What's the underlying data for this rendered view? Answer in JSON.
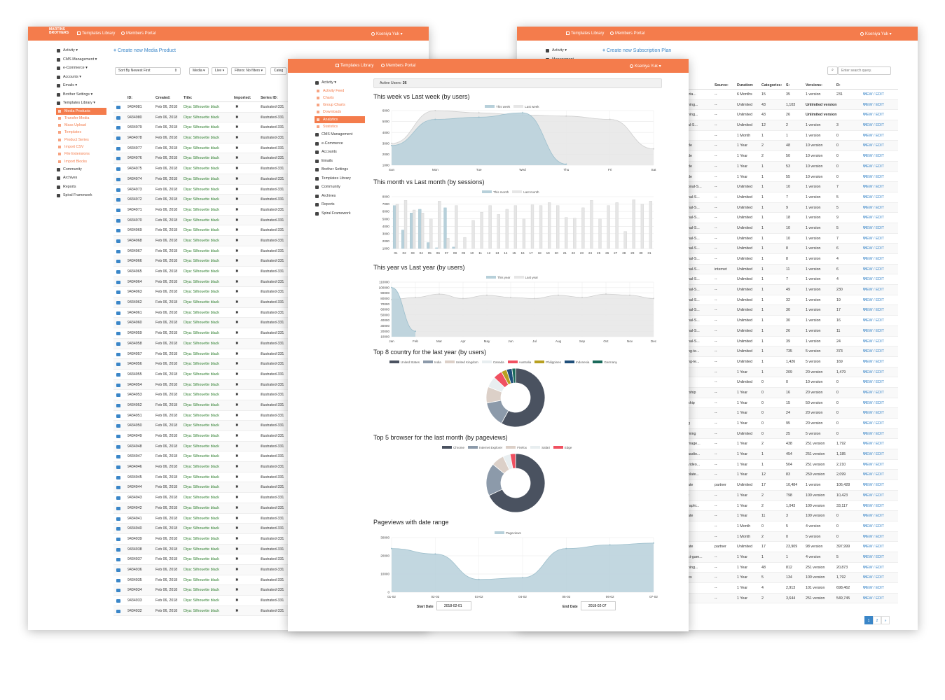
{
  "colors": {
    "accent": "#f47c4c",
    "link": "#3a86c8",
    "green": "#2a7c2a"
  },
  "logo": {
    "lines": [
      "MARTINS",
      "BROTHERS"
    ]
  },
  "nav": {
    "templates": "Templates Library",
    "members": "Members Portal",
    "user": "Kseniya Yuk"
  },
  "left": {
    "create": "Create new Media Product",
    "filters": [
      "Sort By Newest First",
      "Media",
      "Live",
      "Filters: No filters",
      "Categ"
    ],
    "sidebar": {
      "items": [
        "Activity",
        "CMS Management",
        "e-Commerce",
        "Accounts",
        "Emails",
        "Brother Settings",
        "Templates Library"
      ],
      "sub": [
        "Media Products",
        "Transfer Media",
        "Mass Upload",
        "Templates",
        "Product Series",
        "Import CSV",
        "File Extensions",
        "Import Blocks"
      ],
      "active_sub": 0,
      "after": [
        "Community",
        "Archives",
        "Reports",
        "Spiral Framework"
      ]
    },
    "headers": [
      "ID:",
      "Created:",
      "Title:",
      "Imported:",
      "Series ID:"
    ],
    "created": "Feb 06, 2018",
    "title": "Diya: Silhouette black",
    "imported": "✖",
    "series": "illustrated-331",
    "ids": [
      "9434981",
      "9434980",
      "9434979",
      "9434978",
      "9434977",
      "9434976",
      "9434975",
      "9434974",
      "9434973",
      "9434972",
      "9434971",
      "9434970",
      "9434969",
      "9434968",
      "9434967",
      "9434966",
      "9434965",
      "9434964",
      "9434963",
      "9434962",
      "9434961",
      "9434960",
      "9434959",
      "9434958",
      "9434957",
      "9434956",
      "9434955",
      "9434954",
      "9434953",
      "9434952",
      "9434951",
      "9434950",
      "9434949",
      "9434948",
      "9434947",
      "9434946",
      "9434945",
      "9434944",
      "9434943",
      "9434942",
      "9434941",
      "9434940",
      "9434939",
      "9434938",
      "9434937",
      "9434936",
      "9434935",
      "9434934",
      "9434933",
      "9434932"
    ]
  },
  "right": {
    "create": "Create new Subscription Plan",
    "search_placeholder": "Enter search query.",
    "sidebar": [
      "Activity",
      "Management"
    ],
    "headers": [
      "Source:",
      "Duration:",
      "Categories:",
      "S:",
      "Versions:",
      "D:"
    ],
    "action": "VIEW / EDIT",
    "rows": [
      [
        "tria...",
        "--",
        "6 Months",
        "15",
        "35",
        "1 version",
        "231"
      ],
      [
        "ning...",
        "--",
        "Unlimited",
        "43",
        "1,103",
        "Unlimited version",
        ""
      ],
      [
        "ning...",
        "--",
        "Unlimited",
        "43",
        "26",
        "Unlimited version",
        ""
      ],
      [
        "al-S...",
        "--",
        "Unlimited",
        "12",
        "2",
        "1 version",
        "3"
      ],
      [
        "",
        "--",
        "1 Month",
        "1",
        "1",
        "1 version",
        "0"
      ],
      [
        "de",
        "--",
        "1 Year",
        "2",
        "48",
        "10 version",
        "0"
      ],
      [
        "de",
        "--",
        "1 Year",
        "2",
        "50",
        "10 version",
        "0"
      ],
      [
        "de",
        "--",
        "1 Year",
        "1",
        "53",
        "10 version",
        "0"
      ],
      [
        "de",
        "--",
        "1 Year",
        "1",
        "55",
        "10 version",
        "0"
      ],
      [
        "onal-S...",
        "--",
        "Unlimited",
        "1",
        "10",
        "1 version",
        "7"
      ],
      [
        "nal-S...",
        "--",
        "Unlimited",
        "1",
        "7",
        "1 version",
        "5"
      ],
      [
        "nal-S...",
        "--",
        "Unlimited",
        "1",
        "9",
        "1 version",
        "5"
      ],
      [
        "nal-S...",
        "--",
        "Unlimited",
        "1",
        "18",
        "1 version",
        "9"
      ],
      [
        "nal-S...",
        "--",
        "Unlimited",
        "1",
        "10",
        "1 version",
        "5"
      ],
      [
        "nal-S...",
        "--",
        "Unlimited",
        "1",
        "10",
        "1 version",
        "7"
      ],
      [
        "nal-S...",
        "--",
        "Unlimited",
        "1",
        "8",
        "1 version",
        "6"
      ],
      [
        "nal-S...",
        "--",
        "Unlimited",
        "1",
        "8",
        "1 version",
        "4"
      ],
      [
        "nal-S...",
        "internet",
        "Unlimited",
        "1",
        "11",
        "1 version",
        "6"
      ],
      [
        "nal-S...",
        "--",
        "Unlimited",
        "1",
        "7",
        "1 version",
        "4"
      ],
      [
        "nal-S...",
        "--",
        "Unlimited",
        "1",
        "49",
        "1 version",
        "230"
      ],
      [
        "nal-S...",
        "--",
        "Unlimited",
        "1",
        "32",
        "1 version",
        "19"
      ],
      [
        "nal-S...",
        "--",
        "Unlimited",
        "1",
        "30",
        "1 version",
        "17"
      ],
      [
        "nal-S...",
        "--",
        "Unlimited",
        "1",
        "30",
        "1 version",
        "16"
      ],
      [
        "nal-S...",
        "--",
        "Unlimited",
        "1",
        "26",
        "1 version",
        "11"
      ],
      [
        "nal-S...",
        "--",
        "Unlimited",
        "1",
        "39",
        "1 version",
        "24"
      ],
      [
        "ng-te...",
        "--",
        "Unlimited",
        "1",
        "735",
        "5 version",
        "373"
      ],
      [
        "ng-te...",
        "--",
        "Unlimited",
        "1",
        "1,426",
        "5 version",
        "169"
      ],
      [
        "",
        "--",
        "1 Year",
        "1",
        "209",
        "20 version",
        "1,479"
      ],
      [
        "",
        "--",
        "Unlimited",
        "0",
        "0",
        "10 version",
        "0"
      ],
      [
        "rship",
        "--",
        "1 Year",
        "0",
        "16",
        "20 version",
        "0"
      ],
      [
        "ship",
        "--",
        "1 Year",
        "0",
        "15",
        "50 version",
        "0"
      ],
      [
        "",
        "--",
        "1 Year",
        "0",
        "24",
        "20 version",
        "0"
      ],
      [
        "g",
        "--",
        "1 Year",
        "0",
        "95",
        "20 version",
        "0"
      ],
      [
        "ming",
        "--",
        "Unlimited",
        "0",
        "25",
        "5 version",
        "0"
      ],
      [
        "mage...",
        "--",
        "1 Year",
        "2",
        "438",
        "251 version",
        "1,792"
      ],
      [
        "audio...",
        "--",
        "1 Year",
        "1",
        "454",
        "251 version",
        "1,185"
      ],
      [
        "video...",
        "--",
        "1 Year",
        "1",
        "504",
        "251 version",
        "2,210"
      ],
      [
        "plate...",
        "--",
        "1 Year",
        "12",
        "83",
        "250 version",
        "2,099"
      ],
      [
        "ate",
        "partner",
        "Unlimited",
        "17",
        "10,484",
        "1 version",
        "106,428"
      ],
      [
        "t",
        "--",
        "1 Year",
        "2",
        "798",
        "100 version",
        "10,423"
      ],
      [
        "raphi...",
        "--",
        "1 Year",
        "2",
        "1,043",
        "100 version",
        "33,117"
      ],
      [
        "ate",
        "--",
        "1 Year",
        "11",
        "3",
        "100 version",
        "0"
      ],
      [
        "",
        "--",
        "1 Month",
        "0",
        "5",
        "4 version",
        "0"
      ],
      [
        "",
        "--",
        "1 Month",
        "2",
        "0",
        "5 version",
        "0"
      ],
      [
        "ate",
        "partner",
        "Unlimited",
        "17",
        "23,909",
        "98 version",
        "397,999"
      ],
      [
        "ct-gam...",
        "--",
        "1 Year",
        "1",
        "1",
        "4 version",
        "5"
      ],
      [
        "ning...",
        "--",
        "1 Year",
        "48",
        "812",
        "251 version",
        "20,873"
      ],
      [
        "es",
        "--",
        "1 Year",
        "5",
        "134",
        "100 version",
        "1,792"
      ],
      [
        "",
        "--",
        "1 Year",
        "4",
        "2,913",
        "101 version",
        "698,462"
      ],
      [
        "",
        "--",
        "1 Year",
        "2",
        "3,644",
        "251 version",
        "549,745"
      ]
    ],
    "pages": [
      "1",
      "2",
      "»"
    ]
  },
  "center": {
    "sidebar": {
      "items": [
        "Activity"
      ],
      "sub": [
        "Activity Feed",
        "Charts",
        "Group Charts",
        "Downloads",
        "Analytics",
        "Statistics"
      ],
      "active_sub": 4,
      "after": [
        "CMS Management",
        "e-Commerce",
        "Accounts",
        "Emails",
        "Brother Settings",
        "Templates Library",
        "Community",
        "Archives",
        "Reports",
        "Spiral Framework"
      ]
    },
    "active_users_label": "Active Users:",
    "active_users": "26",
    "start_label": "Start Date",
    "start": "2018-02-01",
    "end_label": "End Date",
    "end": "2018-02-07"
  },
  "chart_data": [
    {
      "type": "area",
      "title": "This week vs Last week (by users)",
      "categories": [
        "Sun",
        "Mon",
        "Tue",
        "Wed",
        "Thu",
        "Fri",
        "Sat"
      ],
      "ylim": [
        1000,
        6000
      ],
      "yticks": [
        1000,
        2000,
        3000,
        4000,
        5000,
        6000
      ],
      "series": [
        {
          "name": "This week",
          "values": [
            2800,
            5200,
            5400,
            5800,
            1100,
            null,
            null
          ]
        },
        {
          "name": "Last week",
          "values": [
            3000,
            6000,
            5800,
            5600,
            5500,
            5200,
            2500
          ]
        }
      ]
    },
    {
      "type": "bar",
      "title": "This month vs Last month (by sessions)",
      "categories": [
        "01",
        "02",
        "03",
        "04",
        "05",
        "06",
        "07",
        "08",
        "09",
        "10",
        "11",
        "12",
        "13",
        "14",
        "15",
        "16",
        "17",
        "18",
        "19",
        "20",
        "21",
        "22",
        "23",
        "24",
        "25",
        "26",
        "27",
        "28",
        "29",
        "30",
        "31"
      ],
      "ylim": [
        1000,
        8000
      ],
      "yticks": [
        1000,
        2000,
        3000,
        4000,
        5000,
        6000,
        7000,
        8000
      ],
      "series": [
        {
          "name": "This month",
          "values": [
            6800,
            3500,
            5800,
            6300,
            1800,
            1100,
            6500,
            1200,
            null,
            null,
            null,
            null,
            null,
            null,
            null,
            null,
            null,
            null,
            null,
            null,
            null,
            null,
            null,
            null,
            null,
            null,
            null,
            null,
            null,
            null,
            null
          ]
        },
        {
          "name": "Last month",
          "values": [
            7000,
            7500,
            6200,
            5800,
            5000,
            7400,
            2400,
            6800,
            2500,
            4800,
            5900,
            6800,
            5600,
            6300,
            6800,
            5000,
            6900,
            6800,
            7200,
            6800,
            5200,
            5100,
            6500,
            7500,
            5000,
            6800,
            7200,
            3300,
            7600,
            7000,
            7400
          ]
        }
      ]
    },
    {
      "type": "area",
      "title": "This year vs Last year (by users)",
      "categories": [
        "Jan",
        "Feb",
        "Mar",
        "Apr",
        "May",
        "Jun",
        "Jul",
        "Aug",
        "Sep",
        "Oct",
        "Nov",
        "Dec"
      ],
      "ylim": [
        10000,
        110000
      ],
      "yticks": [
        10000,
        20000,
        30000,
        40000,
        50000,
        60000,
        70000,
        80000,
        90000,
        100000,
        110000
      ],
      "series": [
        {
          "name": "This year",
          "values": [
            100000,
            20000,
            null,
            null,
            null,
            null,
            null,
            null,
            null,
            null,
            null,
            null
          ]
        },
        {
          "name": "Last year",
          "values": [
            78000,
            82000,
            88000,
            80000,
            86000,
            82000,
            80000,
            86000,
            82000,
            88000,
            86000,
            80000
          ]
        }
      ]
    },
    {
      "type": "pie",
      "title": "Top 8 country for the last year (by users)",
      "labels": [
        "United States",
        "India",
        "United Kingdom",
        "Canada",
        "Australia",
        "Philippines",
        "Indonesia",
        "Germany"
      ],
      "values": [
        58,
        14,
        9,
        6,
        5,
        3,
        3,
        2
      ],
      "colors": [
        "#4a5260",
        "#8c9aaa",
        "#dcd0c8",
        "#e8eef0",
        "#f05060",
        "#b8a020",
        "#1f4f7a",
        "#1a6a5a"
      ]
    },
    {
      "type": "pie",
      "title": "Top 5 browser for the last month (by pageviews)",
      "labels": [
        "Chrome",
        "Internet Explorer",
        "Firefox",
        "Safari",
        "Edge"
      ],
      "values": [
        68,
        18,
        7,
        4,
        3
      ],
      "colors": [
        "#4a5260",
        "#8c9aaa",
        "#dcd0c8",
        "#e8eef0",
        "#f05060"
      ]
    },
    {
      "type": "area",
      "title": "Pageviews with date range",
      "categories": [
        "01-02",
        "02-02",
        "03-02",
        "04-02",
        "05-02",
        "06-02",
        "07-02"
      ],
      "ylim": [
        0,
        30000
      ],
      "yticks": [
        0,
        10000,
        20000,
        30000
      ],
      "series": [
        {
          "name": "Pageviews",
          "values": [
            24000,
            21000,
            7000,
            8000,
            24000,
            26000,
            27000
          ]
        }
      ]
    }
  ]
}
